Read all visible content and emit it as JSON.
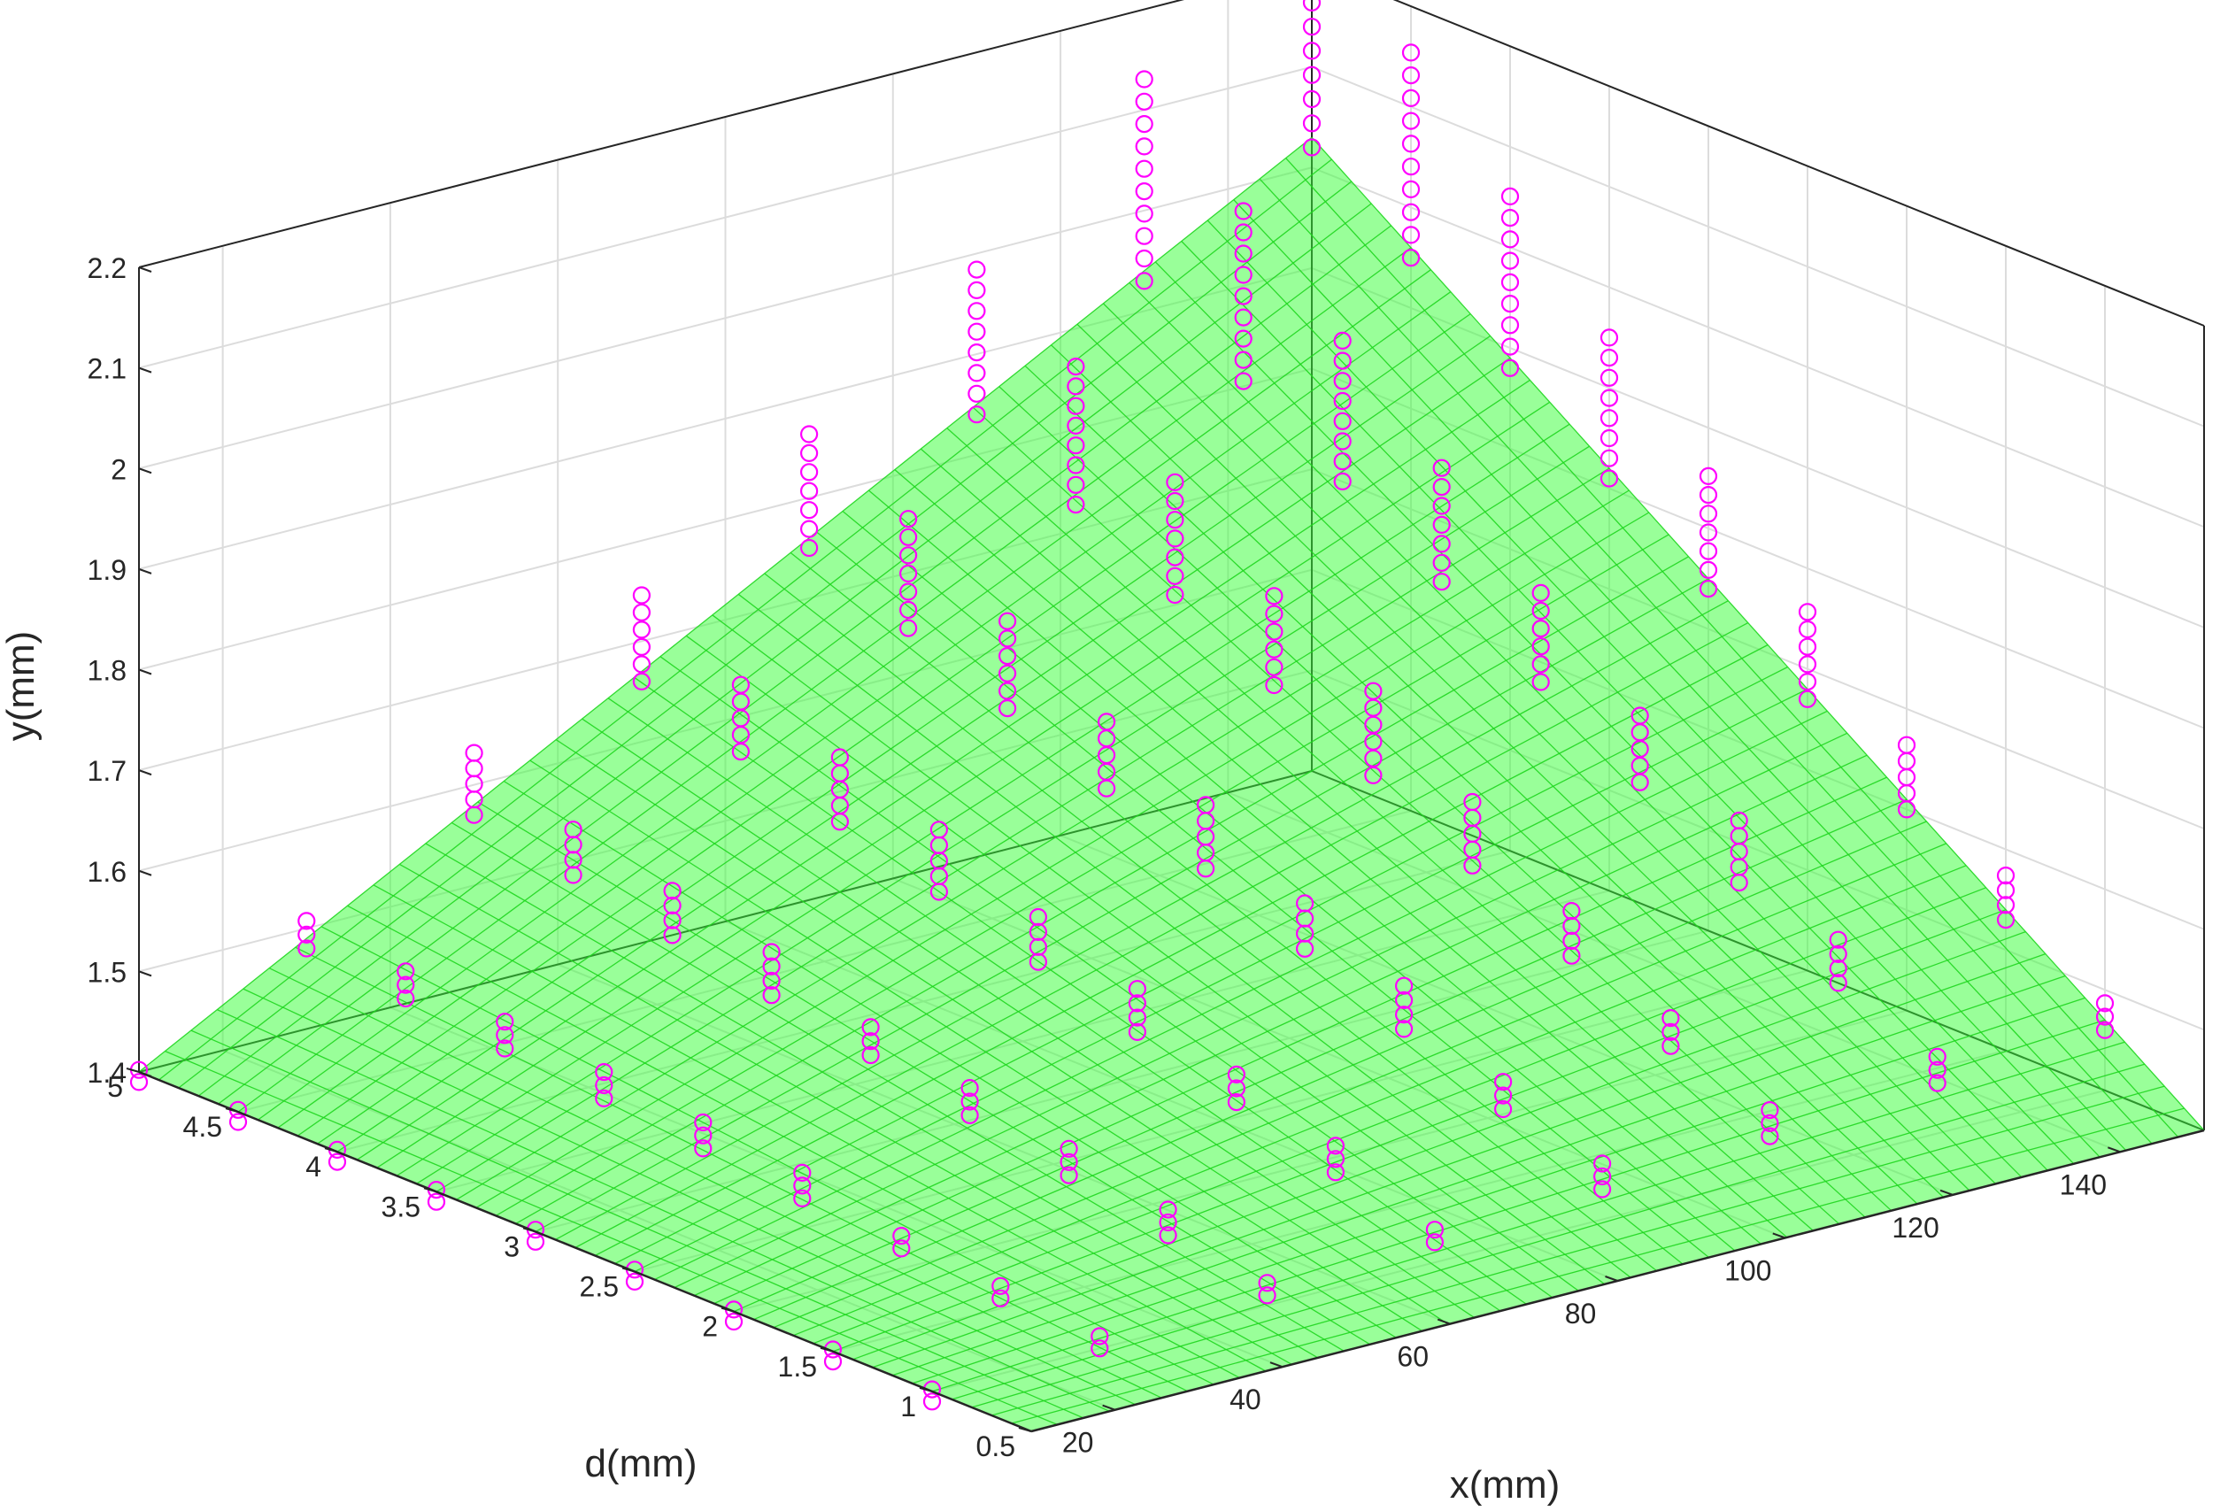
{
  "chart_data": {
    "type": "scatter",
    "subtype": "3d surface with scatter points",
    "title": "",
    "xlabel": "x(mm)",
    "ylabel": "d(mm)",
    "zlabel": "y(mm)",
    "xlim": [
      10,
      150
    ],
    "ylim": [
      0.5,
      5
    ],
    "zlim": [
      1.4,
      2.2
    ],
    "xticks": [
      "20",
      "40",
      "60",
      "80",
      "100",
      "120",
      "140"
    ],
    "yticks": [
      "0.5",
      "1",
      "1.5",
      "2",
      "2.5",
      "3",
      "3.5",
      "4",
      "4.5",
      "5"
    ],
    "zticks": [
      "1.4",
      "1.5",
      "1.6",
      "1.7",
      "1.8",
      "1.9",
      "2",
      "2.1",
      "2.2"
    ],
    "grid": true,
    "surface": {
      "color": "#33ff33",
      "opacity": 0.5,
      "mesh_color": "#1fd61f",
      "base_value": 1.4,
      "max_value": 2.03,
      "x_range": [
        10,
        150
      ],
      "d_range": [
        0.5,
        5
      ]
    },
    "points": {
      "marker": "circle",
      "color": "#ff00ff",
      "x": [
        10,
        30,
        50,
        70,
        90,
        110,
        130,
        150
      ],
      "d": [
        1,
        1.5,
        2,
        2.5,
        3,
        3.5,
        4,
        4.5,
        5
      ]
    },
    "colors": {
      "axes": "#262626",
      "grid": "#dcdcdc"
    }
  }
}
